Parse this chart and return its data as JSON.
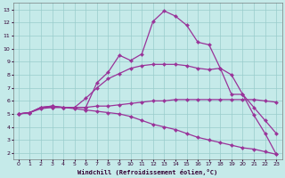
{
  "xlabel": "Windchill (Refroidissement éolien,°C)",
  "background_color": "#c5eae9",
  "line_color": "#993399",
  "grid_color": "#99cccc",
  "xlim": [
    -0.5,
    23.5
  ],
  "ylim": [
    1.5,
    13.5
  ],
  "xticks": [
    0,
    1,
    2,
    3,
    4,
    5,
    6,
    7,
    8,
    9,
    10,
    11,
    12,
    13,
    14,
    15,
    16,
    17,
    18,
    19,
    20,
    21,
    22,
    23
  ],
  "yticks": [
    2,
    3,
    4,
    5,
    6,
    7,
    8,
    9,
    10,
    11,
    12,
    13
  ],
  "line1_x": [
    0,
    1,
    2,
    3,
    4,
    5,
    6,
    7,
    8,
    9,
    10,
    11,
    12,
    13,
    14,
    15,
    16,
    17,
    18,
    19,
    20,
    21,
    22,
    23
  ],
  "line1_y": [
    5.0,
    5.1,
    5.5,
    5.6,
    5.5,
    5.5,
    5.5,
    7.4,
    8.2,
    9.5,
    9.1,
    9.6,
    12.1,
    12.9,
    12.5,
    11.8,
    10.5,
    10.3,
    8.5,
    6.5,
    6.5,
    4.9,
    3.5,
    1.9
  ],
  "line2_x": [
    0,
    1,
    2,
    3,
    4,
    5,
    6,
    7,
    8,
    9,
    10,
    11,
    12,
    13,
    14,
    15,
    16,
    17,
    18,
    19,
    20,
    21,
    22,
    23
  ],
  "line2_y": [
    5.0,
    5.1,
    5.5,
    5.6,
    5.5,
    5.5,
    6.2,
    7.0,
    7.7,
    8.1,
    8.5,
    8.7,
    8.8,
    8.8,
    8.8,
    8.7,
    8.5,
    8.4,
    8.5,
    8.0,
    6.5,
    5.5,
    4.5,
    3.5
  ],
  "line3_x": [
    0,
    1,
    2,
    3,
    4,
    5,
    6,
    7,
    8,
    9,
    10,
    11,
    12,
    13,
    14,
    15,
    16,
    17,
    18,
    19,
    20,
    21,
    22,
    23
  ],
  "line3_y": [
    5.0,
    5.1,
    5.5,
    5.5,
    5.5,
    5.4,
    5.3,
    5.2,
    5.1,
    5.0,
    4.8,
    4.5,
    4.2,
    4.0,
    3.8,
    3.5,
    3.2,
    3.0,
    2.8,
    2.6,
    2.4,
    2.3,
    2.1,
    1.9
  ],
  "line4_x": [
    0,
    1,
    2,
    3,
    4,
    5,
    6,
    7,
    8,
    9,
    10,
    11,
    12,
    13,
    14,
    15,
    16,
    17,
    18,
    19,
    20,
    21,
    22,
    23
  ],
  "line4_y": [
    5.0,
    5.1,
    5.4,
    5.5,
    5.5,
    5.5,
    5.5,
    5.6,
    5.6,
    5.7,
    5.8,
    5.9,
    6.0,
    6.0,
    6.1,
    6.1,
    6.1,
    6.1,
    6.1,
    6.1,
    6.1,
    6.1,
    6.0,
    5.9
  ]
}
